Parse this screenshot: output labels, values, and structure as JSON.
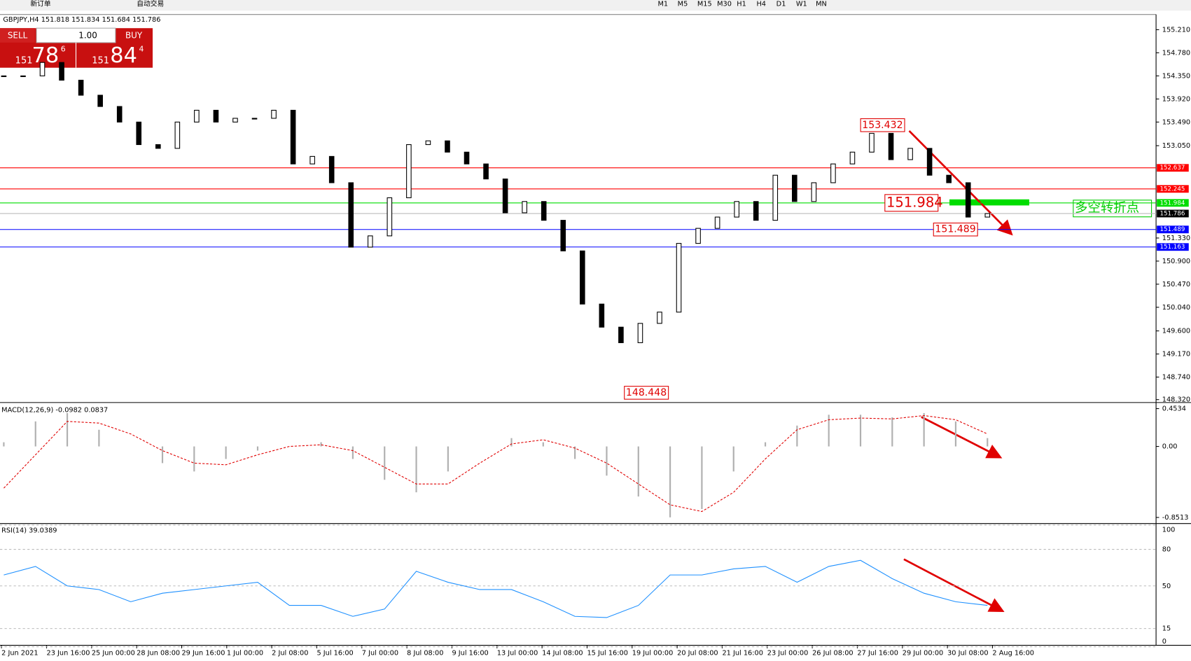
{
  "toolbar": {
    "new_order": "新订单",
    "auto_trade": "自动交易",
    "periods": [
      "M1",
      "M5",
      "M15",
      "M30",
      "H1",
      "H4",
      "D1",
      "W1",
      "MN"
    ]
  },
  "trade_panel": {
    "sell": "SELL",
    "lot": "1.00",
    "buy": "BUY",
    "bid_big": "151",
    "bid_main": "78",
    "bid_small": "6",
    "ask_big": "151",
    "ask_main": "84",
    "ask_small": "4"
  },
  "chart_data": {
    "type": "candlestick",
    "title": "GBPJPY,H4  151.818 151.834 151.684 151.786",
    "close": [
      154.35,
      154.35,
      154.6,
      154.27,
      153.99,
      153.78,
      153.49,
      153.07,
      153.0,
      153.49,
      153.71,
      153.49,
      153.56,
      153.56,
      153.71,
      152.71,
      152.85,
      152.36,
      151.16,
      151.37,
      152.08,
      153.07,
      153.14,
      152.93,
      152.71,
      152.43,
      151.8,
      152.01,
      151.66,
      151.09,
      150.1,
      149.67,
      149.38,
      149.74,
      149.95,
      151.23,
      151.51,
      151.72,
      152.01,
      151.66,
      152.5,
      152.01,
      152.36,
      152.71,
      152.93,
      153.28,
      152.79,
      153.0,
      152.5,
      152.36,
      151.72,
      151.786
    ],
    "ylim": [
      148.28,
      155.48
    ],
    "yticks": [
      {
        "value": 155.21,
        "label": "155.210"
      },
      {
        "value": 154.78,
        "label": "154.780"
      },
      {
        "value": 154.35,
        "label": "154.350"
      },
      {
        "value": 153.92,
        "label": "153.920"
      },
      {
        "value": 153.49,
        "label": "153.490"
      },
      {
        "value": 153.05,
        "label": "153.050"
      },
      {
        "value": 151.33,
        "label": "151.330"
      },
      {
        "value": 150.9,
        "label": "150.900"
      },
      {
        "value": 150.47,
        "label": "150.470"
      },
      {
        "value": 150.04,
        "label": "150.040"
      },
      {
        "value": 149.6,
        "label": "149.600"
      },
      {
        "value": 149.17,
        "label": "149.170"
      },
      {
        "value": 148.74,
        "label": "148.740"
      },
      {
        "value": 148.32,
        "label": "148.320"
      }
    ],
    "levels": [
      {
        "value": 152.637,
        "label": "152.637",
        "color": "#ff0000"
      },
      {
        "value": 152.245,
        "label": "152.245",
        "color": "#ff0000"
      },
      {
        "value": 151.984,
        "label": "151.984",
        "color": "#00dd00"
      },
      {
        "value": 151.786,
        "label": "151.786",
        "color": "#000000"
      },
      {
        "value": 151.489,
        "label": "151.489",
        "color": "#0000ff"
      },
      {
        "value": 151.163,
        "label": "151.163",
        "color": "#0000ff"
      }
    ],
    "annotations": [
      {
        "value": 153.432,
        "label": "153.432"
      },
      {
        "value": 151.984,
        "label": "151.984"
      },
      {
        "value": 151.489,
        "label": "151.489"
      },
      {
        "value": 148.448,
        "label": "148.448"
      }
    ],
    "turn_note": "多空转折点",
    "x_labels": [
      "2 Jun 2021",
      "23 Jun 16:00",
      "25 Jun 00:00",
      "28 Jun 08:00",
      "29 Jun 16:00",
      "1 Jul 00:00",
      "2 Jul 08:00",
      "5 Jul 16:00",
      "7 Jul 00:00",
      "8 Jul 08:00",
      "9 Jul 16:00",
      "13 Jul 00:00",
      "14 Jul 08:00",
      "15 Jul 16:00",
      "19 Jul 00:00",
      "20 Jul 08:00",
      "21 Jul 16:00",
      "23 Jul 00:00",
      "26 Jul 08:00",
      "27 Jul 16:00",
      "29 Jul 00:00",
      "30 Jul 08:00",
      "2 Aug 16:00"
    ],
    "macd": {
      "title": "MACD(12,26,9) -0.0982 0.0837",
      "ylim": [
        -0.924,
        0.499
      ],
      "yticks": [
        0.4534,
        {
          "value": 0,
          "label": "0.00"
        },
        -0.8513
      ],
      "histogram": [
        0.05,
        0.3,
        0.4,
        0.2,
        0.0,
        -0.2,
        -0.3,
        -0.15,
        -0.05,
        0.0,
        0.05,
        -0.15,
        -0.4,
        -0.55,
        -0.3,
        0.0,
        0.1,
        0.05,
        -0.15,
        -0.35,
        -0.6,
        -0.85,
        -0.75,
        -0.3,
        0.05,
        0.25,
        0.38,
        0.38,
        0.35,
        0.4,
        0.3,
        0.1
      ],
      "signal": [
        -0.5,
        -0.1,
        0.3,
        0.28,
        0.15,
        -0.05,
        -0.2,
        -0.22,
        -0.1,
        0.0,
        0.02,
        -0.05,
        -0.25,
        -0.45,
        -0.45,
        -0.2,
        0.03,
        0.08,
        -0.02,
        -0.2,
        -0.45,
        -0.7,
        -0.78,
        -0.55,
        -0.15,
        0.2,
        0.32,
        0.34,
        0.33,
        0.37,
        0.32,
        0.15
      ]
    },
    "rsi": {
      "title": "RSI(14) 39.0389",
      "ylim": [
        0,
        100
      ],
      "yticks": [
        100,
        80,
        50,
        15,
        0
      ],
      "values": [
        59,
        66,
        50,
        47,
        37,
        44,
        47,
        50,
        53,
        34,
        34,
        25,
        31,
        62,
        53,
        47,
        47,
        37,
        25,
        24,
        34,
        59,
        59,
        64,
        66,
        53,
        66,
        71,
        56,
        44,
        37,
        34
      ]
    }
  }
}
